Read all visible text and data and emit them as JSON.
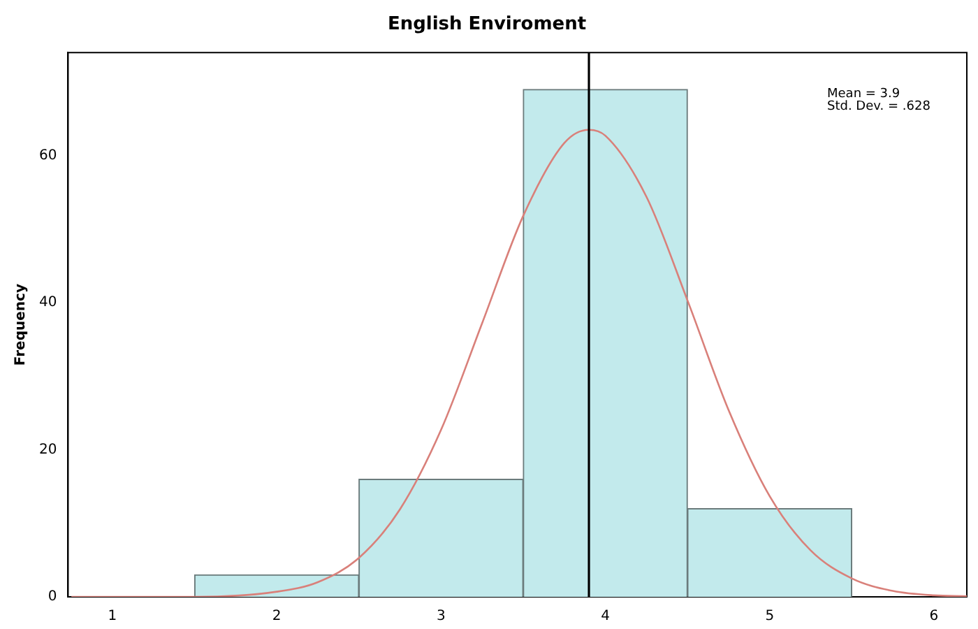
{
  "chart_data": {
    "type": "histogram",
    "title": "English Enviroment",
    "ylabel": "Frequency",
    "bins": [
      1.5,
      2.5,
      3.5,
      4.5,
      5.5
    ],
    "values": [
      3,
      16,
      69,
      12
    ],
    "color": "#c2eaec",
    "xlim": [
      0.73,
      6.2
    ],
    "xticks": [
      1,
      2,
      3,
      4,
      5,
      6
    ],
    "ylim": [
      0,
      74
    ],
    "yticks": [
      0,
      20,
      40,
      60
    ],
    "grid": false,
    "legend": false,
    "series": [
      {
        "type": "line",
        "color": "#d9807a",
        "marker": "none",
        "x": [
          0.75,
          1.5,
          2,
          2.25,
          2.5,
          2.75,
          3,
          3.25,
          3.5,
          3.75,
          3.9,
          4,
          4.25,
          4.5,
          4.75,
          5,
          5.25,
          5.5,
          5.75,
          6,
          6.2
        ],
        "values": [
          0,
          0,
          0.7,
          2,
          5.3,
          11.9,
          22.7,
          37.2,
          51.8,
          61.7,
          63.5,
          62.7,
          54.4,
          40.3,
          25.4,
          13.7,
          6.3,
          2.5,
          0.8,
          0.2,
          0.1
        ]
      }
    ],
    "ref_lines": [
      {
        "axis": "x",
        "value": 3.9,
        "color": "#000000"
      }
    ],
    "annotations": [
      "Mean = 3.9",
      "Std. Dev. = .628"
    ]
  }
}
